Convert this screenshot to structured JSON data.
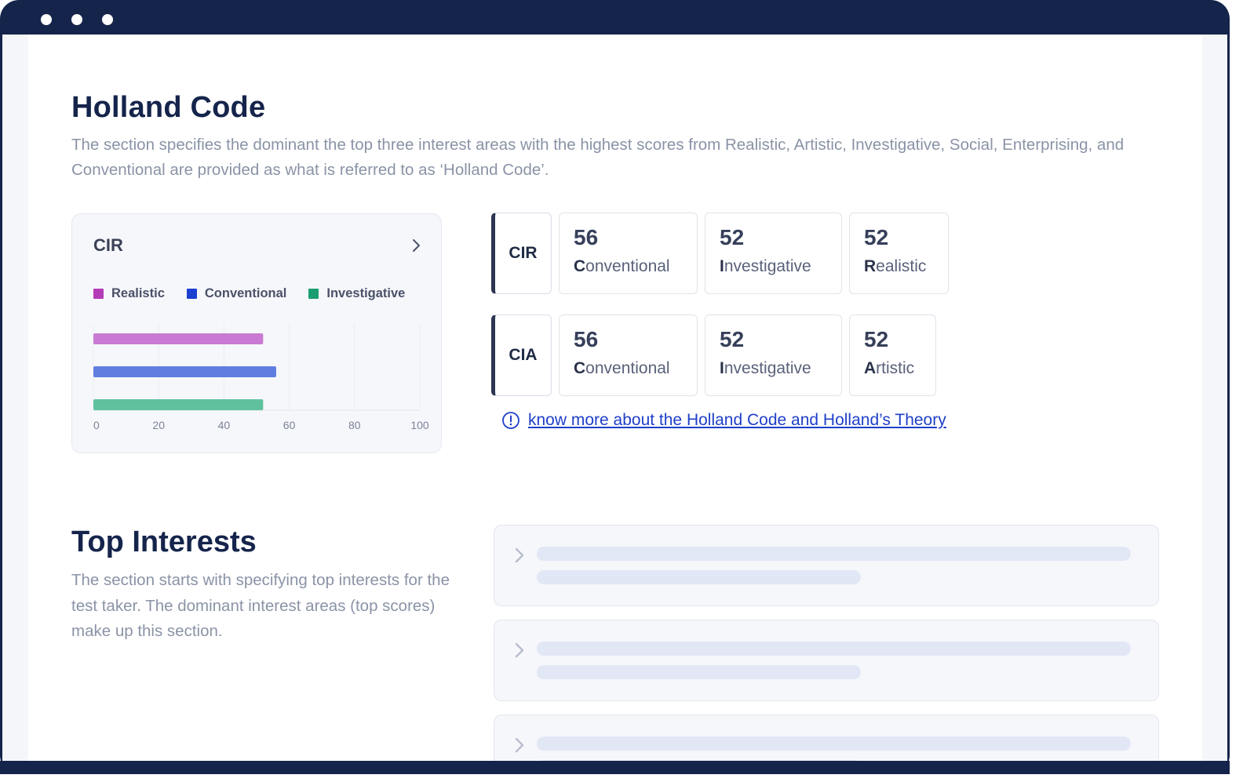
{
  "window": {
    "controls": [
      "dot",
      "dot",
      "dot"
    ]
  },
  "holland": {
    "title": "Holland Code",
    "description": "The section specifies the dominant the top three interest areas with the highest scores from Realistic, Artistic, Investigative, Social, Enterprising, and Conventional are provided as what is referred to as ‘Holland Code’.",
    "chart_card": {
      "title": "CIR",
      "chevron_icon": "chevron-right-icon"
    },
    "codes": [
      {
        "code": "CIR",
        "items": [
          {
            "score": "56",
            "initial": "C",
            "rest": "onventional"
          },
          {
            "score": "52",
            "initial": "I",
            "rest": "nvestigative"
          },
          {
            "score": "52",
            "initial": "R",
            "rest": "ealistic"
          }
        ]
      },
      {
        "code": "CIA",
        "items": [
          {
            "score": "56",
            "initial": "C",
            "rest": "onventional"
          },
          {
            "score": "52",
            "initial": "I",
            "rest": "nvestigative"
          },
          {
            "score": "52",
            "initial": "A",
            "rest": "rtistic"
          }
        ]
      }
    ],
    "info_link": {
      "icon": "info-circle-icon",
      "text": "know more about the Holland Code and Holland’s Theory",
      "color": "#1f3fc8"
    }
  },
  "chart_data": {
    "type": "bar",
    "orientation": "horizontal",
    "title": "CIR",
    "series": [
      {
        "name": "Realistic",
        "value": 52,
        "color": "#c97ad3",
        "legend_color": "#b43bb8"
      },
      {
        "name": "Conventional",
        "value": 56,
        "color": "#5f7ee0",
        "legend_color": "#1b3fd0"
      },
      {
        "name": "Investigative",
        "value": 52,
        "color": "#5fc19d",
        "legend_color": "#1a9e70"
      }
    ],
    "xlim": [
      0,
      100
    ],
    "xticks": [
      "0",
      "20",
      "40",
      "60",
      "80",
      "100"
    ],
    "grid": true,
    "legend": "top"
  },
  "top_interests": {
    "title": "Top Interests",
    "description": "The section starts with specifying top interests for the test taker. The dominant interest areas (top scores) make up this section.",
    "skeleton_items": 3
  },
  "colors": {
    "frame": "#15244b",
    "heading": "#15244b",
    "muted_text": "#8a93a6"
  }
}
